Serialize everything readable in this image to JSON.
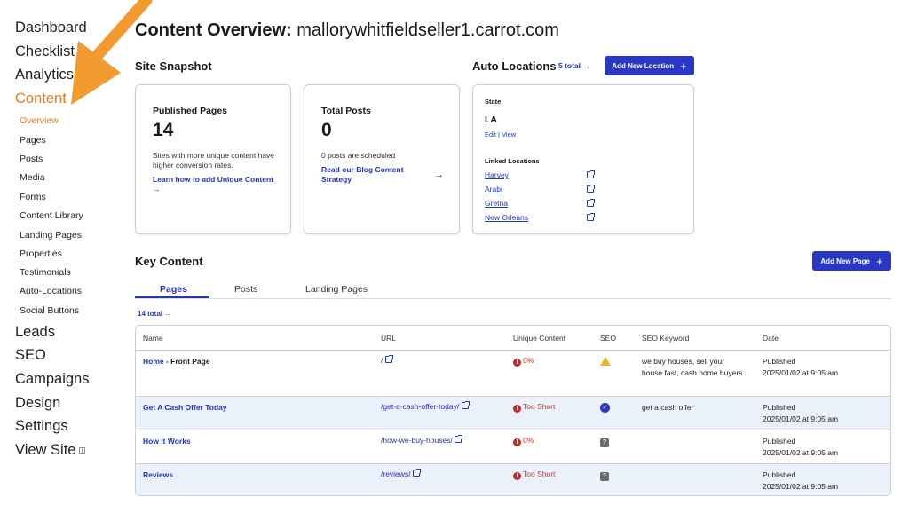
{
  "sidebar": {
    "main_top": [
      "Dashboard",
      "Checklist",
      "Analytics",
      "Content"
    ],
    "sub": [
      "Overview",
      "Pages",
      "Posts",
      "Media",
      "Forms",
      "Content Library",
      "Landing Pages",
      "Properties",
      "Testimonials",
      "Auto-Locations",
      "Social Buttons"
    ],
    "main_bottom": [
      "Leads",
      "SEO",
      "Campaigns",
      "Design",
      "Settings",
      "View Site"
    ]
  },
  "header": {
    "title_prefix": "Content Overview:",
    "site": "mallorywhitfieldseller1.carrot.com"
  },
  "snapshot": {
    "heading": "Site Snapshot",
    "published": {
      "label": "Published Pages",
      "value": "14",
      "desc": "Sites with more unique content have higher conversion rates.",
      "link": "Learn how to add Unique Content"
    },
    "posts": {
      "label": "Total Posts",
      "value": "0",
      "desc": "0 posts are scheduled",
      "link": "Read our Blog Content Strategy"
    }
  },
  "auto_locations": {
    "heading": "Auto Locations",
    "total": "5 total",
    "add_button": "Add New Location",
    "state_label": "State",
    "state_value": "LA",
    "edit": "Edit",
    "view": "View",
    "linked_label": "Linked Locations",
    "linked": [
      "Harvey",
      "Arabi",
      "Gretna",
      "New Orleans"
    ]
  },
  "key_content": {
    "heading": "Key Content",
    "add_button": "Add New Page",
    "tabs": [
      "Pages",
      "Posts",
      "Landing Pages"
    ],
    "total": "14 total",
    "columns": [
      "Name",
      "URL",
      "Unique Content",
      "SEO",
      "SEO Keyword",
      "Date"
    ],
    "rows": [
      {
        "name": "Home",
        "name_suffix": " - Front Page",
        "url": "/",
        "unique": "0%",
        "seo": "warning",
        "keyword": "we buy houses, sell your house fast, cash home buyers",
        "status": "Published",
        "date": "2025/01/02 at 9:05 am"
      },
      {
        "name": "Get A Cash Offer Today",
        "name_suffix": "",
        "url": "/get-a-cash-offer-today/",
        "unique": "Too Short",
        "seo": "check",
        "keyword": "get a cash offer",
        "status": "Published",
        "date": "2025/01/02 at 9:05 am"
      },
      {
        "name": "How It Works",
        "name_suffix": "",
        "url": "/how-we-buy-houses/",
        "unique": "0%",
        "seo": "question",
        "keyword": "",
        "status": "Published",
        "date": "2025/01/02 at 9:05 am"
      },
      {
        "name": "Reviews",
        "name_suffix": "",
        "url": "/reviews/",
        "unique": "Too Short",
        "seo": "question",
        "keyword": "",
        "status": "Published",
        "date": "2025/01/02 at 9:05 am"
      }
    ]
  },
  "colors": {
    "accent_orange": "#ee7a22",
    "brand_blue": "#2a37c4",
    "link_blue": "#2236b8",
    "alt_row": "#eaf1fb"
  }
}
